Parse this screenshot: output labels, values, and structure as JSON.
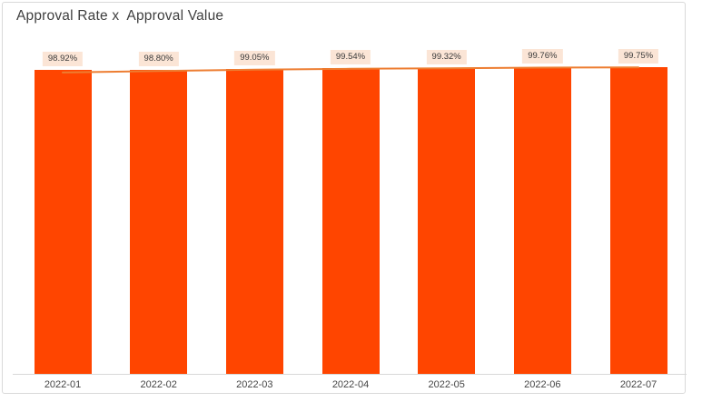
{
  "chart_data": {
    "type": "bar",
    "title": "Approval Rate x  Approval Value",
    "categories": [
      "2022-01",
      "2022-02",
      "2022-03",
      "2022-04",
      "2022-05",
      "2022-06",
      "2022-07"
    ],
    "series": [
      {
        "name": "Approval Rate",
        "type": "bar",
        "unit": "%",
        "color": "#FF4500",
        "values": [
          98.92,
          98.8,
          99.05,
          99.54,
          99.32,
          99.76,
          99.75
        ],
        "data_labels": [
          "98.92%",
          "98.80%",
          "99.05%",
          "99.54%",
          "99.32%",
          "99.76%",
          "99.75%"
        ]
      },
      {
        "name": "Trendline",
        "type": "line",
        "color": "#ED7D31",
        "values_estimated": [
          97.98,
          98.48,
          98.9,
          99.19,
          99.34,
          99.6,
          99.66
        ]
      }
    ],
    "ylim": [
      0,
      100
    ],
    "y_axis_visible": false,
    "gridlines": false,
    "legend": "none"
  },
  "style": {
    "background": "#FFFFFF",
    "frame_border": "#D9D9D9",
    "axis_line": "#D9D9D9",
    "title_color": "#3F3F3F",
    "label_bg": "#FBE5D6",
    "label_text": "#3A3A3A",
    "x_label_color": "#444444"
  }
}
